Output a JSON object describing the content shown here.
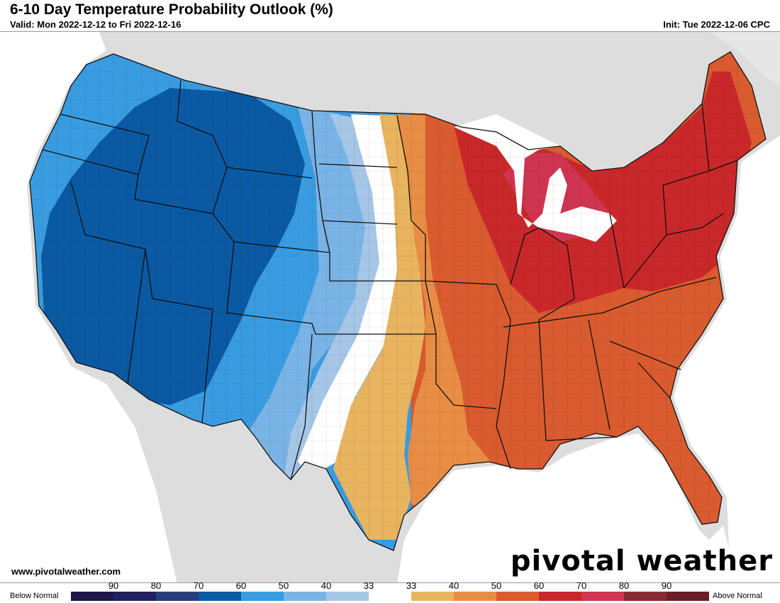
{
  "header": {
    "title": "6-10 Day Temperature Probability Outlook (%)",
    "valid": "Valid: Mon 2022-12-12 to Fri 2022-12-16",
    "init": "Init: Tue 2022-12-06 CPC"
  },
  "footer": {
    "website": "www.pivotalweather.com",
    "brand": "pivotal weather"
  },
  "legend": {
    "below_label": "Below Normal",
    "above_label": "Above Normal",
    "ticks": [
      "90",
      "80",
      "70",
      "60",
      "50",
      "40",
      "33",
      "33",
      "40",
      "50",
      "60",
      "70",
      "80",
      "90"
    ],
    "colors": [
      "#1d1848",
      "#22205e",
      "#2a3d7b",
      "#0a5aa3",
      "#3a9ce0",
      "#7ab4e6",
      "#a6c6e8",
      "#ffffff",
      "#e9b460",
      "#e88d45",
      "#d95b2f",
      "#c9282a",
      "#cf3550",
      "#872a31",
      "#6b1e27"
    ]
  },
  "map_colors": {
    "background": "#dddddd",
    "land": "#e3e3e3",
    "water": "#ffffff",
    "below_60": "#0a5aa3",
    "below_50": "#3a9ce0",
    "below_40": "#7ab4e6",
    "below_33": "#a6c6e8",
    "normal": "#ffffff",
    "above_33": "#e9b460",
    "above_40": "#e88d45",
    "above_50": "#d95b2f",
    "above_60": "#c9282a",
    "above_70": "#cf3550"
  }
}
